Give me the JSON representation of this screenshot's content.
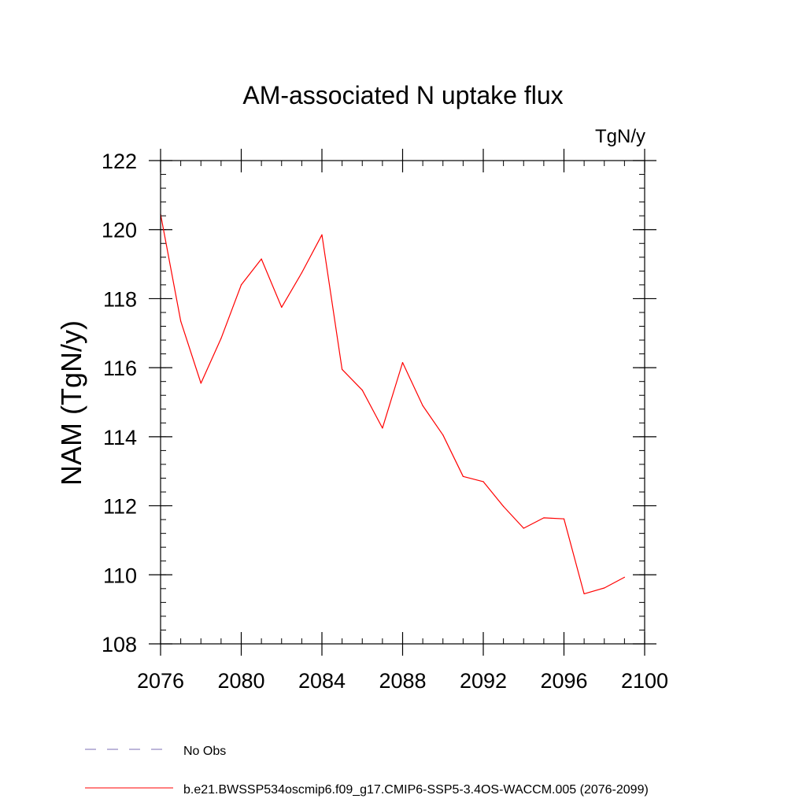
{
  "chart_data": {
    "type": "line",
    "title": "AM-associated N uptake flux",
    "units": "TgN/y",
    "ylabel": "NAM  (TgN/y)",
    "xlabel": "",
    "xlim": [
      2076,
      2100
    ],
    "ylim": [
      108,
      122
    ],
    "x_ticks": [
      2076,
      2080,
      2084,
      2088,
      2092,
      2096,
      2100
    ],
    "y_ticks": [
      108,
      110,
      112,
      114,
      116,
      118,
      120,
      122
    ],
    "x_minor_step": 1,
    "y_minor_step": 0.4,
    "x": [
      2076,
      2077,
      2078,
      2079,
      2080,
      2081,
      2082,
      2083,
      2084,
      2085,
      2086,
      2087,
      2088,
      2089,
      2090,
      2091,
      2092,
      2093,
      2094,
      2095,
      2096,
      2097,
      2098,
      2099
    ],
    "series": [
      {
        "name": "b.e21.BWSSP534oscmip6.f09_g17.CMIP6-SSP5-3.4OS-WACCM.005 (2076-2099)",
        "color": "#ff0000",
        "style": "solid",
        "values": [
          120.45,
          117.35,
          115.55,
          116.85,
          118.4,
          119.15,
          117.75,
          118.75,
          119.85,
          115.95,
          115.35,
          114.25,
          116.15,
          114.9,
          114.05,
          112.85,
          112.7,
          111.98,
          111.35,
          111.65,
          111.62,
          109.45,
          109.62,
          109.93
        ]
      }
    ],
    "legend": [
      {
        "label": "No Obs",
        "color": "#7b6cb4",
        "style": "dashed"
      },
      {
        "label": "b.e21.BWSSP534oscmip6.f09_g17.CMIP6-SSP5-3.4OS-WACCM.005 (2076-2099)",
        "color": "#ff0000",
        "style": "solid"
      }
    ],
    "legend_position": "bottom-left"
  }
}
